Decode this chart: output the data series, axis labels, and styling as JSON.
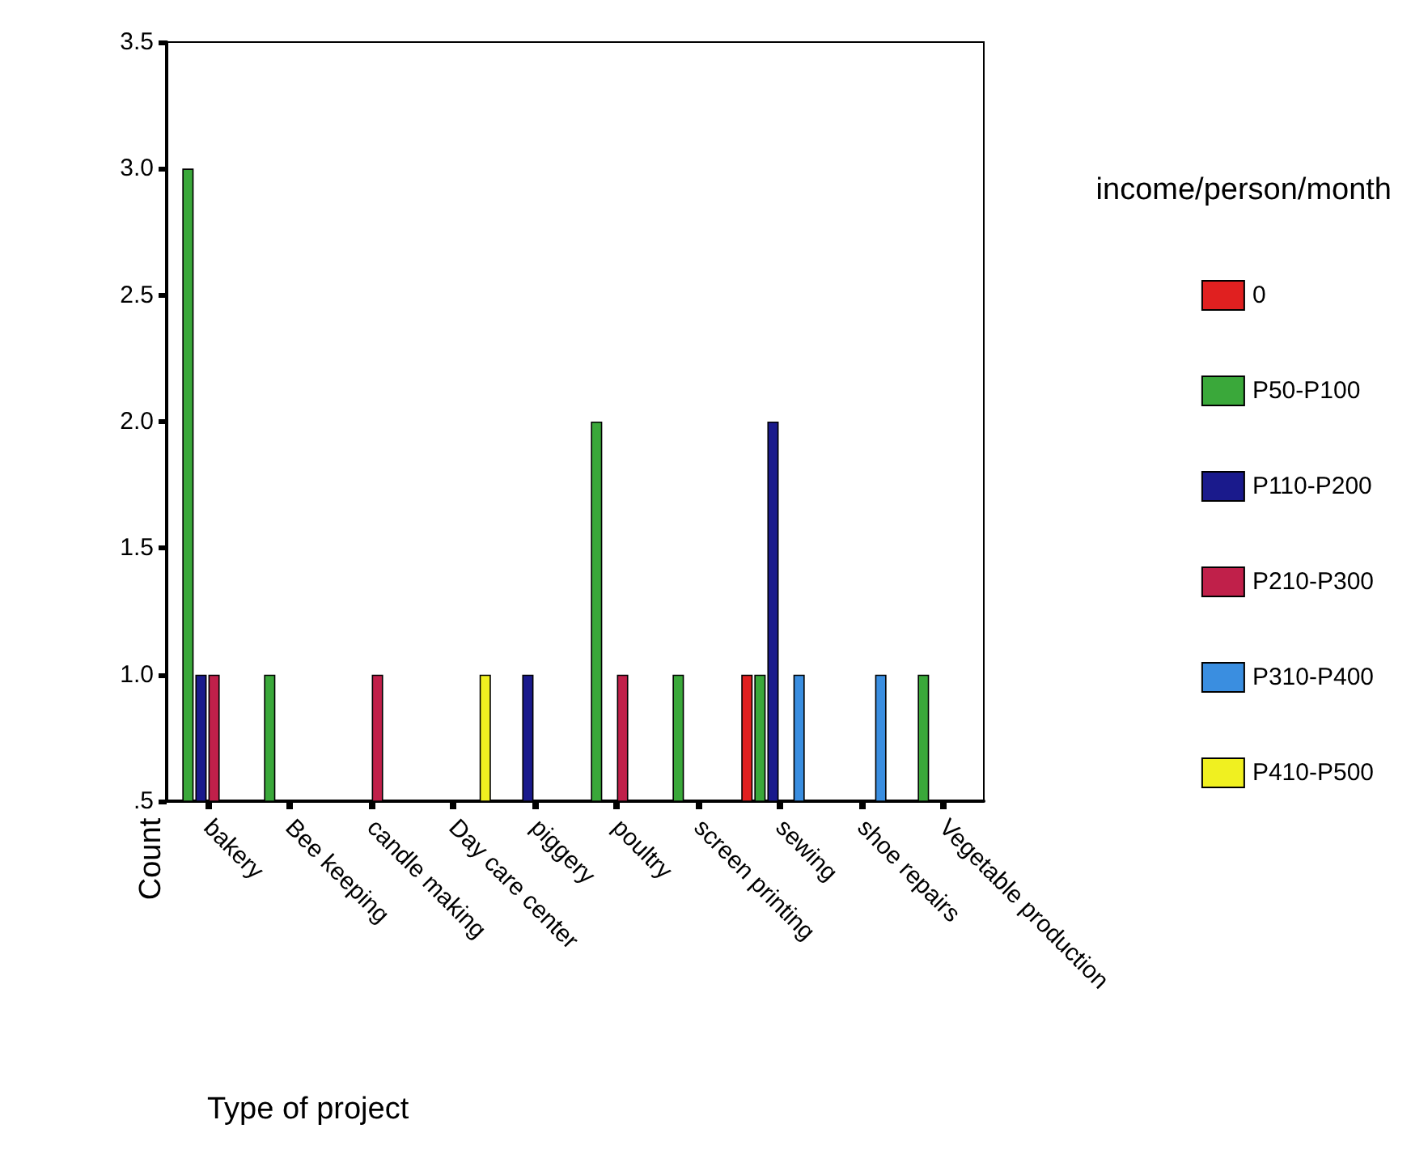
{
  "chart_data": {
    "type": "bar",
    "xlabel": "Type of project",
    "ylabel": "Count",
    "legend_title": "income/person/month",
    "categories": [
      "bakery",
      "Bee keeping",
      "candle making",
      "Day care center",
      "piggery",
      "poultry",
      "screen printing",
      "sewing",
      "shoe repairs",
      "Vegetable production"
    ],
    "series": [
      {
        "name": "0",
        "color": "#e02020",
        "values": [
          null,
          null,
          null,
          null,
          null,
          null,
          null,
          1,
          null,
          null
        ]
      },
      {
        "name": "P50-P100",
        "color": "#3aa83a",
        "values": [
          3,
          1,
          null,
          null,
          null,
          2,
          1,
          1,
          null,
          1
        ]
      },
      {
        "name": "P110-P200",
        "color": "#1a1a8c",
        "values": [
          1,
          null,
          null,
          null,
          1,
          null,
          null,
          2,
          null,
          null
        ]
      },
      {
        "name": "P210-P300",
        "color": "#c0204a",
        "values": [
          1,
          null,
          1,
          null,
          null,
          1,
          null,
          null,
          null,
          null
        ]
      },
      {
        "name": "P310-P400",
        "color": "#3a8ee0",
        "values": [
          null,
          null,
          null,
          null,
          null,
          null,
          null,
          1,
          1,
          null
        ]
      },
      {
        "name": "P410-P500",
        "color": "#f0f020",
        "values": [
          null,
          null,
          null,
          1,
          null,
          null,
          null,
          null,
          null,
          null
        ]
      }
    ],
    "ylim": [
      0.5,
      3.5
    ],
    "yticks": [
      {
        "value": 0.5,
        "label": ".5"
      },
      {
        "value": 1,
        "label": "1.0"
      },
      {
        "value": 1.5,
        "label": "1.5"
      },
      {
        "value": 2,
        "label": "2.0"
      },
      {
        "value": 2.5,
        "label": "2.5"
      },
      {
        "value": 3,
        "label": "3.0"
      },
      {
        "value": 3.5,
        "label": "3.5"
      }
    ],
    "grid": false,
    "legend": "right"
  }
}
